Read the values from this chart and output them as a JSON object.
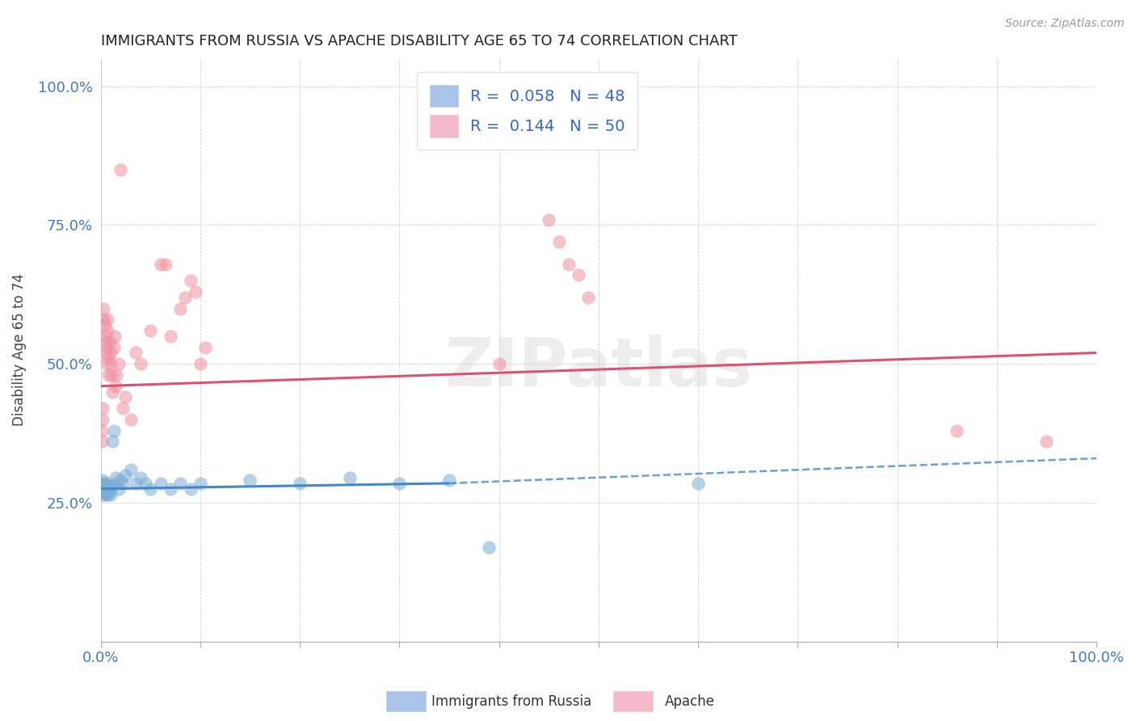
{
  "title": "IMMIGRANTS FROM RUSSIA VS APACHE DISABILITY AGE 65 TO 74 CORRELATION CHART",
  "source_text": "Source: ZipAtlas.com",
  "ylabel": "Disability Age 65 to 74",
  "xlim": [
    0,
    1.0
  ],
  "ylim": [
    0,
    1.05
  ],
  "xticks": [
    0.0,
    0.1,
    0.2,
    0.3,
    0.4,
    0.5,
    0.6,
    0.7,
    0.8,
    0.9,
    1.0
  ],
  "xticklabels": [
    "0.0%",
    "",
    "",
    "",
    "",
    "",
    "",
    "",
    "",
    "",
    "100.0%"
  ],
  "yticks": [
    0.0,
    0.25,
    0.5,
    0.75,
    1.0
  ],
  "yticklabels": [
    "",
    "25.0%",
    "50.0%",
    "75.0%",
    "100.0%"
  ],
  "legend_label_blue": "R =  0.058   N = 48",
  "legend_label_pink": "R =  0.144   N = 50",
  "legend_color_blue": "#a8c4e8",
  "legend_color_pink": "#f4b8c8",
  "blue_color": "#7aadd4",
  "pink_color": "#f090a0",
  "trend_blue_color": "#4488cc",
  "trend_pink_color": "#e05070",
  "watermark": "ZIPatlas",
  "blue_scatter": [
    [
      0.001,
      0.28
    ],
    [
      0.001,
      0.27
    ],
    [
      0.001,
      0.285
    ],
    [
      0.002,
      0.29
    ],
    [
      0.002,
      0.275
    ],
    [
      0.002,
      0.27
    ],
    [
      0.003,
      0.28
    ],
    [
      0.003,
      0.265
    ],
    [
      0.003,
      0.285
    ],
    [
      0.004,
      0.27
    ],
    [
      0.004,
      0.28
    ],
    [
      0.004,
      0.275
    ],
    [
      0.005,
      0.265
    ],
    [
      0.005,
      0.28
    ],
    [
      0.005,
      0.275
    ],
    [
      0.006,
      0.27
    ],
    [
      0.006,
      0.285
    ],
    [
      0.007,
      0.265
    ],
    [
      0.007,
      0.28
    ],
    [
      0.008,
      0.275
    ],
    [
      0.009,
      0.27
    ],
    [
      0.01,
      0.265
    ],
    [
      0.011,
      0.28
    ],
    [
      0.012,
      0.36
    ],
    [
      0.013,
      0.38
    ],
    [
      0.015,
      0.295
    ],
    [
      0.016,
      0.285
    ],
    [
      0.018,
      0.275
    ],
    [
      0.02,
      0.29
    ],
    [
      0.022,
      0.285
    ],
    [
      0.025,
      0.3
    ],
    [
      0.03,
      0.31
    ],
    [
      0.035,
      0.285
    ],
    [
      0.04,
      0.295
    ],
    [
      0.045,
      0.285
    ],
    [
      0.05,
      0.275
    ],
    [
      0.06,
      0.285
    ],
    [
      0.07,
      0.275
    ],
    [
      0.08,
      0.285
    ],
    [
      0.09,
      0.275
    ],
    [
      0.1,
      0.285
    ],
    [
      0.15,
      0.29
    ],
    [
      0.2,
      0.285
    ],
    [
      0.25,
      0.295
    ],
    [
      0.3,
      0.285
    ],
    [
      0.35,
      0.29
    ],
    [
      0.39,
      0.17
    ],
    [
      0.6,
      0.285
    ]
  ],
  "pink_scatter": [
    [
      0.001,
      0.38
    ],
    [
      0.001,
      0.36
    ],
    [
      0.002,
      0.4
    ],
    [
      0.002,
      0.42
    ],
    [
      0.003,
      0.58
    ],
    [
      0.003,
      0.6
    ],
    [
      0.004,
      0.55
    ],
    [
      0.004,
      0.57
    ],
    [
      0.005,
      0.52
    ],
    [
      0.005,
      0.54
    ],
    [
      0.006,
      0.5
    ],
    [
      0.006,
      0.53
    ],
    [
      0.007,
      0.56
    ],
    [
      0.007,
      0.58
    ],
    [
      0.008,
      0.48
    ],
    [
      0.008,
      0.51
    ],
    [
      0.009,
      0.54
    ],
    [
      0.01,
      0.5
    ],
    [
      0.01,
      0.52
    ],
    [
      0.011,
      0.48
    ],
    [
      0.012,
      0.45
    ],
    [
      0.013,
      0.53
    ],
    [
      0.014,
      0.55
    ],
    [
      0.015,
      0.46
    ],
    [
      0.016,
      0.48
    ],
    [
      0.018,
      0.5
    ],
    [
      0.02,
      0.85
    ],
    [
      0.022,
      0.42
    ],
    [
      0.025,
      0.44
    ],
    [
      0.03,
      0.4
    ],
    [
      0.035,
      0.52
    ],
    [
      0.04,
      0.5
    ],
    [
      0.05,
      0.56
    ],
    [
      0.06,
      0.68
    ],
    [
      0.065,
      0.68
    ],
    [
      0.07,
      0.55
    ],
    [
      0.08,
      0.6
    ],
    [
      0.085,
      0.62
    ],
    [
      0.09,
      0.65
    ],
    [
      0.095,
      0.63
    ],
    [
      0.1,
      0.5
    ],
    [
      0.105,
      0.53
    ],
    [
      0.4,
      0.5
    ],
    [
      0.45,
      0.76
    ],
    [
      0.46,
      0.72
    ],
    [
      0.47,
      0.68
    ],
    [
      0.48,
      0.66
    ],
    [
      0.49,
      0.62
    ],
    [
      0.86,
      0.38
    ],
    [
      0.95,
      0.36
    ]
  ],
  "blue_trend_solid": {
    "x_start": 0.0,
    "y_start": 0.275,
    "x_end": 0.35,
    "y_end": 0.285
  },
  "blue_trend_dashed": {
    "x_start": 0.35,
    "y_start": 0.285,
    "x_end": 1.0,
    "y_end": 0.33
  },
  "pink_trend": {
    "x_start": 0.0,
    "y_start": 0.46,
    "x_end": 1.0,
    "y_end": 0.52
  }
}
